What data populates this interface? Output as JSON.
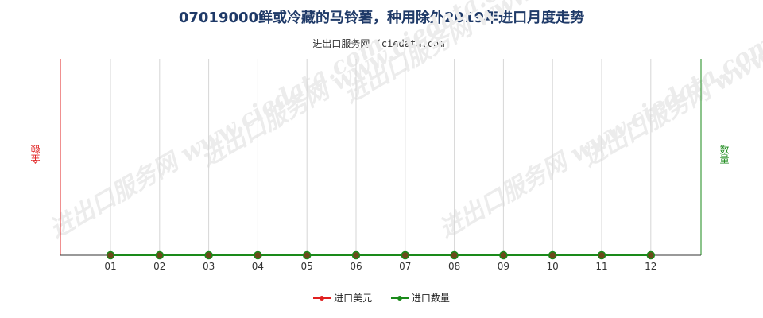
{
  "chart_data": {
    "type": "line",
    "title": "07019000鲜或冷藏的马铃薯，种用除外2019年进口月度走势",
    "subtitle": "进出口服务网 (ciedata.com)",
    "ylabel_left": "金额",
    "ylabel_right": "数量",
    "categories": [
      "01",
      "02",
      "03",
      "04",
      "05",
      "06",
      "07",
      "08",
      "09",
      "10",
      "11",
      "12"
    ],
    "series": [
      {
        "name": "进口美元",
        "color": "#e02020",
        "values": [
          0,
          0,
          0,
          0,
          0,
          0,
          0,
          0,
          0,
          0,
          0,
          0
        ]
      },
      {
        "name": "进口数量",
        "color": "#1a8a1a",
        "values": [
          0,
          0,
          0,
          0,
          0,
          0,
          0,
          0,
          0,
          0,
          0,
          0
        ]
      }
    ],
    "left_axis_color": "#e02020",
    "right_axis_color": "#1a8a1a",
    "marker_color": "#6b4a1a",
    "grid": true,
    "legend": "bottom",
    "watermark": "进出口服务网 www.ciedata.com"
  }
}
